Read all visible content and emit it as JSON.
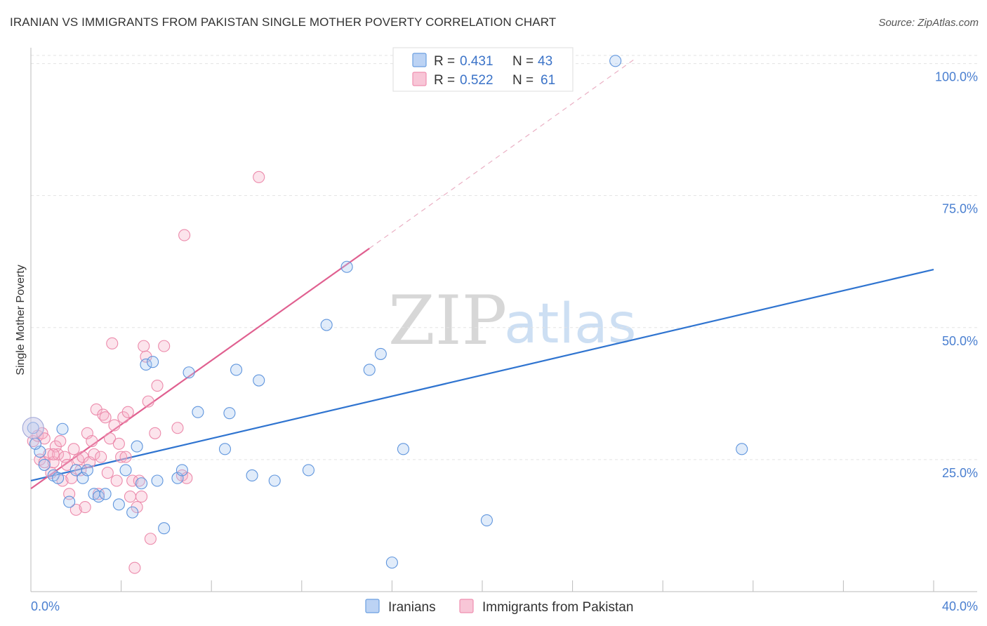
{
  "header": {
    "title": "IRANIAN VS IMMIGRANTS FROM PAKISTAN SINGLE MOTHER POVERTY CORRELATION CHART",
    "source": "Source: ZipAtlas.com"
  },
  "watermark": {
    "zip": "ZIP",
    "atlas": "atlas"
  },
  "legend": {
    "rows": [
      {
        "r_label": "R = ",
        "r_value": "0.431",
        "n_label": "N = ",
        "n_value": "43"
      },
      {
        "r_label": "R = ",
        "r_value": "0.522",
        "n_label": "N = ",
        "n_value": "61"
      }
    ]
  },
  "chart_data": {
    "type": "scatter",
    "title": "IRANIAN VS IMMIGRANTS FROM PAKISTAN SINGLE MOTHER POVERTY CORRELATION CHART",
    "xlabel": "",
    "ylabel": "Single Mother Poverty",
    "xlim": [
      0,
      40
    ],
    "ylim": [
      0,
      103
    ],
    "x_tick_labels": [
      "0.0%",
      "40.0%"
    ],
    "y_ticks": [
      25,
      50,
      75,
      100
    ],
    "y_tick_labels": [
      "25.0%",
      "50.0%",
      "75.0%",
      "100.0%"
    ],
    "grid": true,
    "legend_position": "top-center",
    "colors": {
      "Iranians": "#6b9fe0",
      "Iranians_line": "#2f74d0",
      "Immigrants from Pakistan": "#ef8fb0",
      "Immigrants from Pakistan_line": "#e06090"
    },
    "series": [
      {
        "name": "Iranians",
        "r": 0.431,
        "n": 43,
        "trend": {
          "x0": 0,
          "y0": 21,
          "x1": 40,
          "y1": 61
        },
        "points": [
          [
            0.1,
            31
          ],
          [
            0.4,
            26.5
          ],
          [
            0.6,
            24
          ],
          [
            1.0,
            22
          ],
          [
            1.2,
            21.5
          ],
          [
            1.4,
            30.8
          ],
          [
            1.7,
            17
          ],
          [
            2.0,
            23
          ],
          [
            2.3,
            21.5
          ],
          [
            2.5,
            23
          ],
          [
            2.8,
            18.5
          ],
          [
            3.0,
            18
          ],
          [
            3.3,
            18.5
          ],
          [
            3.9,
            16.5
          ],
          [
            4.2,
            23
          ],
          [
            4.5,
            15
          ],
          [
            4.7,
            27.5
          ],
          [
            4.9,
            20.5
          ],
          [
            5.1,
            43
          ],
          [
            5.4,
            43.5
          ],
          [
            5.6,
            21
          ],
          [
            5.9,
            12
          ],
          [
            6.5,
            21.5
          ],
          [
            6.7,
            23
          ],
          [
            7.0,
            41.5
          ],
          [
            7.4,
            34
          ],
          [
            8.6,
            27
          ],
          [
            8.8,
            33.8
          ],
          [
            9.1,
            42
          ],
          [
            9.8,
            22
          ],
          [
            10.1,
            40
          ],
          [
            10.8,
            21
          ],
          [
            12.3,
            23
          ],
          [
            13.1,
            50.5
          ],
          [
            14.0,
            61.5
          ],
          [
            15.0,
            42
          ],
          [
            15.5,
            45
          ],
          [
            16.0,
            5.5
          ],
          [
            16.5,
            27
          ],
          [
            20.2,
            13.5
          ],
          [
            25.9,
            100.5
          ],
          [
            31.5,
            27
          ],
          [
            0.2,
            28
          ]
        ]
      },
      {
        "name": "Immigrants from Pakistan",
        "r": 0.522,
        "n": 61,
        "trend": {
          "x0": 0,
          "y0": 19.5,
          "x1": 15,
          "y1": 65
        },
        "trend_dashed": {
          "x0": 15,
          "y0": 65,
          "x1": 26.8,
          "y1": 101
        },
        "points": [
          [
            0.1,
            28.5
          ],
          [
            0.3,
            29.5
          ],
          [
            0.4,
            25
          ],
          [
            0.5,
            30
          ],
          [
            0.6,
            24.5
          ],
          [
            0.8,
            26
          ],
          [
            0.9,
            22.5
          ],
          [
            1.0,
            24.5
          ],
          [
            1.1,
            27.5
          ],
          [
            1.2,
            26
          ],
          [
            1.3,
            28.5
          ],
          [
            1.4,
            21
          ],
          [
            1.5,
            25.5
          ],
          [
            1.6,
            24
          ],
          [
            1.7,
            18.5
          ],
          [
            1.8,
            21.5
          ],
          [
            1.9,
            27
          ],
          [
            2.0,
            15.5
          ],
          [
            2.1,
            25
          ],
          [
            2.2,
            23
          ],
          [
            2.3,
            25.5
          ],
          [
            2.4,
            16
          ],
          [
            2.5,
            30
          ],
          [
            2.6,
            24.5
          ],
          [
            2.7,
            28.5
          ],
          [
            2.8,
            26
          ],
          [
            2.9,
            34.5
          ],
          [
            3.0,
            18.5
          ],
          [
            3.1,
            25.5
          ],
          [
            3.2,
            33.5
          ],
          [
            3.3,
            33
          ],
          [
            3.4,
            22.5
          ],
          [
            3.5,
            29
          ],
          [
            3.6,
            47
          ],
          [
            3.7,
            31.5
          ],
          [
            3.8,
            21
          ],
          [
            3.9,
            28
          ],
          [
            4.0,
            25.5
          ],
          [
            4.1,
            33
          ],
          [
            4.2,
            25.5
          ],
          [
            4.3,
            34
          ],
          [
            4.4,
            18
          ],
          [
            4.5,
            21
          ],
          [
            4.6,
            4.5
          ],
          [
            4.7,
            16
          ],
          [
            4.8,
            21
          ],
          [
            4.9,
            18
          ],
          [
            5.0,
            46.5
          ],
          [
            5.1,
            44.5
          ],
          [
            5.2,
            36
          ],
          [
            5.3,
            10
          ],
          [
            5.5,
            30
          ],
          [
            5.6,
            39
          ],
          [
            5.9,
            46.5
          ],
          [
            6.5,
            31
          ],
          [
            6.7,
            22
          ],
          [
            6.8,
            67.5
          ],
          [
            6.9,
            21.5
          ],
          [
            10.1,
            78.5
          ],
          [
            0.6,
            29
          ],
          [
            1.0,
            26
          ]
        ]
      }
    ]
  },
  "bottom_legend": {
    "items": [
      {
        "label": "Iranians"
      },
      {
        "label": "Immigrants from Pakistan"
      }
    ]
  }
}
